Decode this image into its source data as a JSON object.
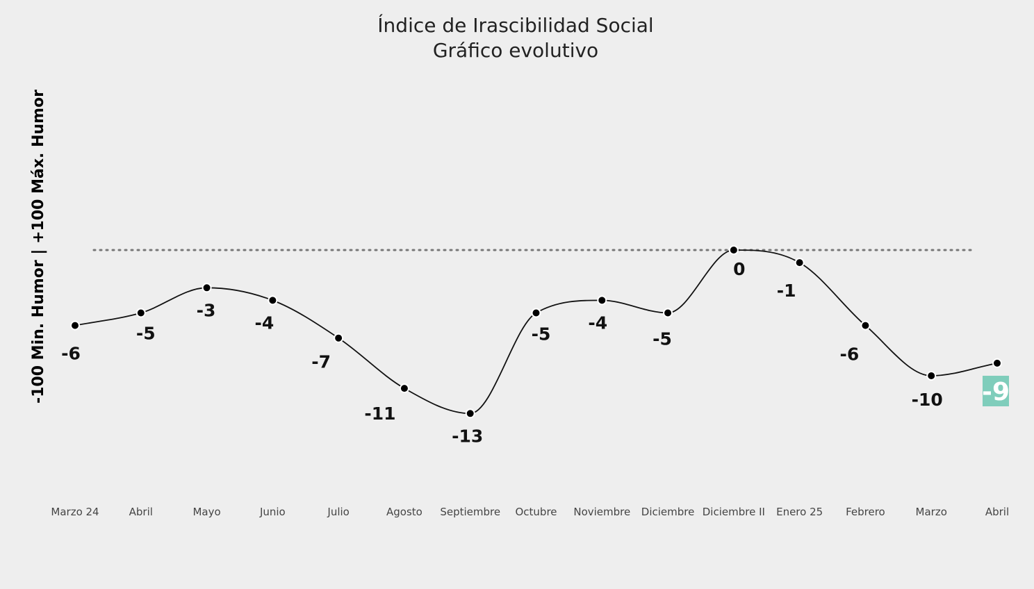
{
  "chart_data": {
    "type": "line",
    "title": "Índice de Irascibilidad Social",
    "subtitle": "Gráfico evolutivo",
    "xlabel": "",
    "ylabel": "-100 Min. Humor | +100 Máx. Humor",
    "categories": [
      "Marzo 24",
      "Abril",
      "Mayo",
      "Junio",
      "Julio",
      "Agosto",
      "Septiembre",
      "Octubre",
      "Noviembre",
      "Diciembre",
      "Diciembre II",
      "Enero 25",
      "Febrero",
      "Marzo",
      "Abril"
    ],
    "series": [
      {
        "values": [
          -6,
          -5,
          -3,
          -4,
          -7,
          -11,
          -13,
          -5,
          -4,
          -5,
          0,
          -1,
          -6,
          -10,
          -9
        ]
      }
    ],
    "data_labels": [
      "-6",
      "-5",
      "-3",
      "-4",
      "-7",
      "-11",
      "-13",
      "-5",
      "-4",
      "-5",
      "0",
      "-1",
      "-6",
      "-10",
      "-9"
    ],
    "reference_line": 0,
    "grid": false,
    "line_color": "#111111",
    "point_color": "#000000",
    "reference_line_color": "#777777",
    "highlight_index": 14,
    "highlight_color": "#7fcdbb"
  }
}
